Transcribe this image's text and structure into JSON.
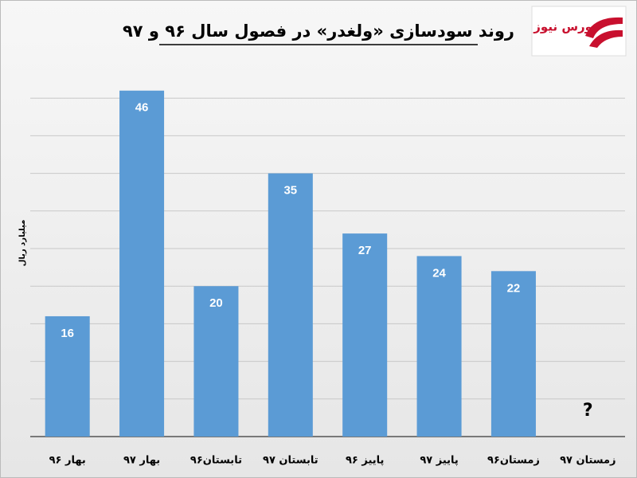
{
  "chart_data": {
    "type": "bar",
    "title": "روند سودسازی «ولغدر» در فصول سال ۹۶ و ۹۷",
    "logo": "بورس نیوز",
    "y_label": "میلیارد ریال",
    "categories": [
      "بهار ۹۶",
      "بهار ۹۷",
      "تابستان۹۶",
      "تابستان ۹۷",
      "پاییز ۹۶",
      "پاییز ۹۷",
      "زمستان۹۶",
      "زمستان ۹۷"
    ],
    "values": [
      16,
      46,
      20,
      35,
      27,
      24,
      22,
      null
    ],
    "value_labels": [
      "16",
      "46",
      "20",
      "35",
      "27",
      "24",
      "22",
      "?"
    ],
    "color": "#5b9bd5",
    "ylim": [
      0,
      50
    ],
    "yticks": [
      0,
      5,
      10,
      15,
      20,
      25,
      30,
      35,
      40,
      45
    ],
    "grid": true
  }
}
